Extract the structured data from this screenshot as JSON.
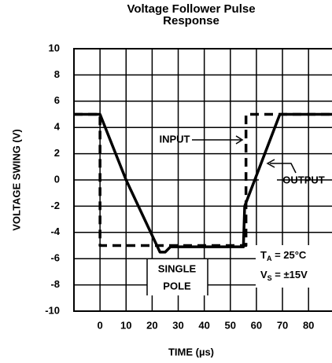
{
  "chart_data": {
    "type": "line",
    "title": "Voltage Follower Pulse Response",
    "xlabel": "TIME (µs)",
    "ylabel": "VOLTAGE SWING (V)",
    "xlim": [
      -10,
      89
    ],
    "ylim": [
      -10,
      10
    ],
    "xticks": [
      0,
      10,
      20,
      30,
      40,
      50,
      60,
      70,
      80
    ],
    "yticks": [
      10,
      8,
      6,
      4,
      2,
      0,
      -2,
      -4,
      -6,
      -8,
      -10
    ],
    "grid": true,
    "series": [
      {
        "name": "INPUT",
        "color": "#000000",
        "dashed": true,
        "x": [
          -10,
          0,
          0,
          56,
          56,
          89
        ],
        "values": [
          5,
          5,
          -5,
          -5,
          5,
          5
        ]
      },
      {
        "name": "OUTPUT",
        "color": "#000000",
        "dashed": false,
        "x": [
          -10,
          0,
          10,
          23,
          25,
          27,
          55,
          55.5,
          69,
          89
        ],
        "values": [
          5,
          5,
          0,
          -5.5,
          -5.5,
          -5.1,
          -5.1,
          -2,
          5,
          5
        ]
      }
    ],
    "annotations": [
      "SINGLE",
      "POLE"
    ],
    "conditions": [
      {
        "symbol": "T",
        "sub": "A",
        "text": " = 25°C"
      },
      {
        "symbol": "V",
        "sub": "S",
        "text": " = ±15V"
      }
    ]
  }
}
